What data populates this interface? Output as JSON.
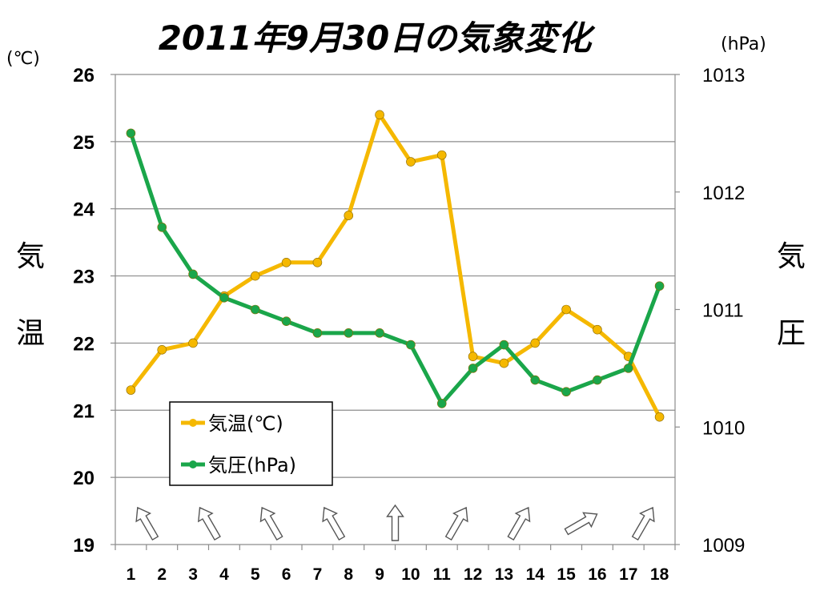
{
  "chart_data": {
    "type": "line",
    "title": "2011年9月30日の気象変化",
    "y_left": {
      "label_chars": [
        "気",
        "温"
      ],
      "unit": "(℃)",
      "range": [
        19,
        26
      ],
      "ticks": [
        "19",
        "20",
        "21",
        "22",
        "23",
        "24",
        "25",
        "26"
      ]
    },
    "y_right": {
      "label_chars": [
        "気",
        "圧"
      ],
      "unit": "(hPa)",
      "range": [
        1009,
        1013
      ],
      "ticks": [
        "1009",
        "1010",
        "1011",
        "1012",
        "1013"
      ]
    },
    "x": [
      "1",
      "2",
      "3",
      "4",
      "5",
      "6",
      "7",
      "8",
      "9",
      "10",
      "11",
      "12",
      "13",
      "14",
      "15",
      "16",
      "17",
      "18"
    ],
    "series": [
      {
        "name": "気温(℃)",
        "axis": "left",
        "color": "#f5b800",
        "values": [
          21.3,
          21.9,
          22.0,
          22.7,
          23.0,
          23.2,
          23.2,
          23.9,
          25.4,
          24.7,
          24.8,
          21.8,
          21.7,
          22.0,
          22.5,
          22.2,
          21.8,
          20.9
        ]
      },
      {
        "name": "気圧(hPa)",
        "axis": "right",
        "color": "#1aa64a",
        "values": [
          1012.5,
          1011.7,
          1011.3,
          1011.1,
          1011.0,
          1010.9,
          1010.8,
          1010.8,
          1010.8,
          1010.7,
          1010.2,
          1010.5,
          1010.7,
          1010.4,
          1010.3,
          1010.4,
          1010.5,
          1011.2
        ]
      }
    ],
    "wind_directions_deg": [
      -30,
      -30,
      -30,
      -30,
      0,
      30,
      30,
      60,
      30
    ],
    "wind_positions": [
      2,
      4,
      6,
      8,
      10,
      12,
      14,
      16,
      18
    ],
    "grid": true,
    "legend": "inside-bottom-left"
  }
}
